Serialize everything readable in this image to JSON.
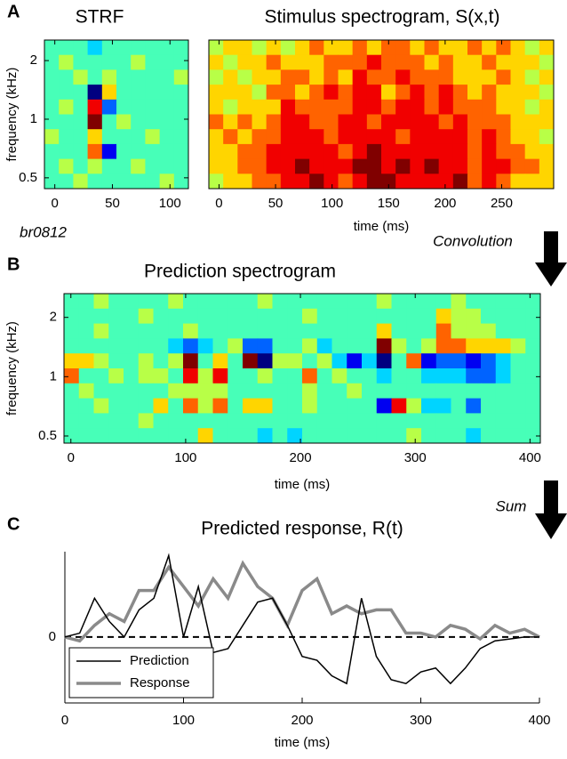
{
  "labels": {
    "convolution": "Convolution",
    "sum": "Sum"
  },
  "chart_data": [
    {
      "type": "heatmap",
      "panel": "A",
      "title": "STRF",
      "ylabel": "frequency (kHz)",
      "annotation": "br0812",
      "xlim": [
        -9,
        116
      ],
      "ylim": [
        0.44,
        2.55
      ],
      "log_y": true,
      "colormap": "jet",
      "xticks": [
        0,
        50,
        100
      ],
      "yticks": [
        0.5,
        1,
        2
      ],
      "values": [
        [
          4,
          4,
          4,
          3,
          4,
          4,
          4,
          4,
          4,
          4
        ],
        [
          4,
          5,
          4,
          4,
          4,
          4,
          5,
          4,
          4,
          4
        ],
        [
          4,
          4,
          5,
          4,
          5,
          4,
          4,
          4,
          4,
          5
        ],
        [
          4,
          4,
          4,
          0,
          6,
          4,
          4,
          4,
          4,
          4
        ],
        [
          4,
          5,
          4,
          8,
          2,
          4,
          4,
          4,
          4,
          4
        ],
        [
          4,
          4,
          4,
          9,
          4,
          5,
          4,
          4,
          4,
          4
        ],
        [
          5,
          4,
          4,
          6,
          4,
          4,
          4,
          5,
          4,
          4
        ],
        [
          4,
          4,
          4,
          7,
          1,
          4,
          4,
          4,
          4,
          4
        ],
        [
          4,
          5,
          4,
          5,
          4,
          4,
          5,
          4,
          4,
          4
        ],
        [
          4,
          4,
          5,
          4,
          4,
          4,
          4,
          4,
          5,
          4
        ]
      ]
    },
    {
      "type": "heatmap",
      "title": "Stimulus spectrogram, S(x,t)",
      "xlabel": "time (ms)",
      "xlim": [
        -9,
        296
      ],
      "ylim": [
        0.44,
        2.55
      ],
      "log_y": true,
      "colormap": "jet",
      "xticks": [
        0,
        50,
        100,
        150,
        200,
        250
      ],
      "values": [
        [
          5,
          6,
          6,
          5,
          6,
          5,
          6,
          7,
          6,
          6,
          7,
          6,
          7,
          7,
          6,
          7,
          6,
          6,
          7,
          6,
          7,
          6,
          5,
          6
        ],
        [
          6,
          5,
          6,
          6,
          7,
          6,
          6,
          6,
          7,
          7,
          7,
          8,
          7,
          7,
          7,
          6,
          7,
          6,
          6,
          7,
          6,
          6,
          6,
          5
        ],
        [
          5,
          6,
          5,
          6,
          6,
          7,
          7,
          6,
          7,
          6,
          8,
          7,
          7,
          8,
          7,
          7,
          7,
          6,
          6,
          6,
          7,
          6,
          5,
          6
        ],
        [
          6,
          6,
          6,
          5,
          7,
          7,
          6,
          7,
          8,
          7,
          8,
          8,
          6,
          7,
          8,
          7,
          8,
          7,
          6,
          7,
          6,
          6,
          6,
          5
        ],
        [
          6,
          5,
          6,
          6,
          6,
          8,
          7,
          7,
          7,
          7,
          8,
          8,
          7,
          8,
          8,
          7,
          8,
          7,
          7,
          7,
          6,
          6,
          5,
          6
        ],
        [
          7,
          6,
          7,
          6,
          7,
          8,
          8,
          7,
          7,
          8,
          8,
          7,
          8,
          8,
          8,
          8,
          7,
          8,
          7,
          7,
          7,
          6,
          6,
          6
        ],
        [
          6,
          7,
          6,
          7,
          7,
          8,
          8,
          8,
          7,
          8,
          8,
          8,
          8,
          7,
          8,
          8,
          8,
          8,
          7,
          8,
          7,
          6,
          6,
          5
        ],
        [
          6,
          6,
          7,
          7,
          8,
          8,
          8,
          8,
          8,
          7,
          8,
          9,
          8,
          8,
          8,
          8,
          8,
          8,
          7,
          8,
          7,
          7,
          6,
          6
        ],
        [
          6,
          6,
          7,
          7,
          8,
          8,
          9,
          8,
          8,
          8,
          9,
          9,
          8,
          9,
          8,
          9,
          8,
          8,
          7,
          8,
          8,
          7,
          7,
          6
        ],
        [
          5,
          6,
          6,
          7,
          7,
          8,
          8,
          9,
          8,
          7,
          8,
          9,
          9,
          8,
          8,
          8,
          8,
          9,
          7,
          8,
          7,
          6,
          6,
          6
        ]
      ]
    },
    {
      "type": "heatmap",
      "panel": "B",
      "title": "Prediction spectrogram",
      "xlabel": "time (ms)",
      "ylabel": "frequency (kHz)",
      "xlim": [
        -6,
        409
      ],
      "ylim": [
        0.46,
        2.64
      ],
      "log_y": true,
      "colormap": "jet",
      "xticks": [
        0,
        100,
        200,
        300,
        400
      ],
      "yticks": [
        0.5,
        1,
        2
      ],
      "values": [
        [
          4,
          4,
          5,
          4,
          4,
          4,
          4,
          5,
          4,
          4,
          4,
          4,
          4,
          5,
          4,
          4,
          4,
          4,
          4,
          4,
          4,
          5,
          4,
          4,
          4,
          4,
          5,
          4,
          4,
          4,
          4,
          4
        ],
        [
          4,
          4,
          4,
          4,
          4,
          5,
          4,
          4,
          4,
          4,
          4,
          4,
          4,
          4,
          4,
          4,
          5,
          4,
          4,
          4,
          4,
          4,
          4,
          4,
          4,
          6,
          5,
          5,
          4,
          4,
          4,
          4
        ],
        [
          4,
          4,
          5,
          4,
          4,
          4,
          4,
          4,
          5,
          4,
          4,
          4,
          4,
          4,
          4,
          4,
          4,
          4,
          4,
          4,
          4,
          6,
          4,
          4,
          4,
          7,
          5,
          5,
          5,
          4,
          4,
          4
        ],
        [
          4,
          4,
          4,
          4,
          4,
          4,
          4,
          3,
          2,
          3,
          4,
          5,
          2,
          2,
          4,
          4,
          5,
          3,
          4,
          4,
          4,
          9,
          5,
          4,
          5,
          7,
          7,
          6,
          6,
          6,
          5,
          4
        ],
        [
          6,
          6,
          5,
          4,
          4,
          5,
          4,
          5,
          9,
          4,
          6,
          4,
          9,
          0,
          5,
          5,
          4,
          5,
          3,
          1,
          3,
          0,
          4,
          7,
          1,
          2,
          2,
          1,
          2,
          3,
          4,
          4
        ],
        [
          7,
          4,
          4,
          5,
          4,
          5,
          5,
          4,
          8,
          5,
          8,
          4,
          4,
          5,
          4,
          4,
          7,
          4,
          5,
          4,
          4,
          3,
          4,
          4,
          3,
          3,
          3,
          2,
          2,
          3,
          4,
          4
        ],
        [
          4,
          5,
          4,
          4,
          4,
          4,
          4,
          5,
          5,
          5,
          5,
          4,
          4,
          4,
          4,
          4,
          5,
          4,
          4,
          5,
          4,
          4,
          4,
          4,
          4,
          4,
          4,
          4,
          4,
          4,
          4,
          4
        ],
        [
          4,
          4,
          5,
          4,
          4,
          4,
          6,
          4,
          7,
          5,
          7,
          4,
          6,
          6,
          4,
          4,
          5,
          4,
          4,
          4,
          4,
          1,
          8,
          5,
          3,
          3,
          4,
          2,
          4,
          4,
          4,
          4
        ],
        [
          4,
          4,
          4,
          4,
          4,
          5,
          4,
          4,
          4,
          4,
          4,
          4,
          4,
          4,
          4,
          4,
          4,
          4,
          4,
          4,
          4,
          4,
          4,
          4,
          4,
          4,
          4,
          4,
          4,
          4,
          4,
          4
        ],
        [
          4,
          4,
          4,
          4,
          4,
          4,
          4,
          4,
          4,
          6,
          4,
          4,
          4,
          3,
          4,
          3,
          4,
          4,
          4,
          4,
          4,
          4,
          4,
          5,
          4,
          4,
          4,
          3,
          4,
          4,
          4,
          4
        ]
      ]
    },
    {
      "type": "line",
      "panel": "C",
      "title": "Predicted response, R(t)",
      "xlabel": "time (ms)",
      "xlim": [
        0,
        400
      ],
      "ylim": [
        -1.7,
        2.2
      ],
      "xticks": [
        0,
        100,
        200,
        300,
        400
      ],
      "yticks": [
        0
      ],
      "hline": 0,
      "legend": "lower left",
      "x": [
        0,
        12.5,
        25,
        37.5,
        50,
        62.5,
        75,
        87.5,
        100,
        112.5,
        125,
        137.5,
        150,
        162.5,
        175,
        187.5,
        200,
        212.5,
        225,
        237.5,
        250,
        262.5,
        275,
        287.5,
        300,
        312.5,
        325,
        337.5,
        350,
        362.5,
        375,
        387.5,
        400
      ],
      "series": [
        {
          "name": "Prediction",
          "color": "#000000",
          "width": 1.5,
          "values": [
            0,
            0.1,
            1.0,
            0.4,
            0,
            0.7,
            1.0,
            2.1,
            0,
            1.3,
            -0.4,
            -0.3,
            0.3,
            0.9,
            1.0,
            0.3,
            -0.5,
            -0.6,
            -1.0,
            -1.2,
            1.0,
            -0.5,
            -1.1,
            -1.2,
            -0.9,
            -0.8,
            -1.2,
            -0.8,
            -0.3,
            -0.1,
            -0.05,
            0,
            0
          ]
        },
        {
          "name": "Response",
          "color": "#8a8a8a",
          "width": 3.5,
          "values": [
            0,
            -0.1,
            0.3,
            0.6,
            0.4,
            1.2,
            1.2,
            1.8,
            1.3,
            0.8,
            1.5,
            1.0,
            1.9,
            1.3,
            1.0,
            0.3,
            1.2,
            1.5,
            0.6,
            0.8,
            0.6,
            0.7,
            0.7,
            0.1,
            0.1,
            0,
            0.3,
            0.2,
            -0.05,
            0.3,
            0.1,
            0.2,
            0
          ]
        }
      ]
    }
  ]
}
